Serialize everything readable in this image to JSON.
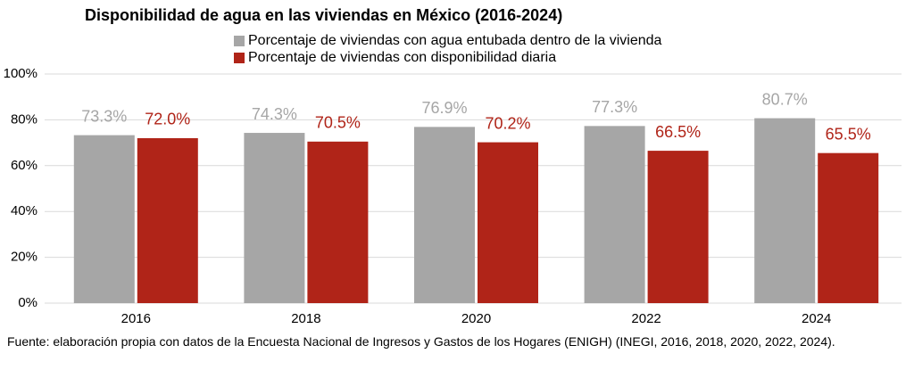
{
  "chart_data": {
    "type": "bar",
    "title": "Disponibilidad de agua en las viviendas en México (2016-2024)",
    "categories": [
      "2016",
      "2018",
      "2020",
      "2022",
      "2024"
    ],
    "series": [
      {
        "name": "Porcentaje de viviendas con agua entubada dentro de la vivienda",
        "color": "#a6a6a6",
        "values": [
          73.3,
          74.3,
          76.9,
          77.3,
          80.7
        ],
        "value_labels": [
          "73.3%",
          "74.3%",
          "76.9%",
          "77.3%",
          "80.7%"
        ]
      },
      {
        "name": "Porcentaje de viviendas con disponibilidad diaria",
        "color": "#b02418",
        "values": [
          72.0,
          70.5,
          70.2,
          66.5,
          65.5
        ],
        "value_labels": [
          "72.0%",
          "70.5%",
          "70.2%",
          "66.5%",
          "65.5%"
        ]
      }
    ],
    "ylim": [
      0,
      100
    ],
    "yticks": [
      {
        "value": 0,
        "label": "0%"
      },
      {
        "value": 20,
        "label": "20%"
      },
      {
        "value": 40,
        "label": "40%"
      },
      {
        "value": 60,
        "label": "60%"
      },
      {
        "value": 80,
        "label": "80%"
      },
      {
        "value": 100,
        "label": "100%"
      }
    ],
    "grid": true,
    "source": "Fuente: elaboración propia con datos de la Encuesta Nacional de Ingresos y Gastos de los Hogares (ENIGH) (INEGI, 2016, 2018, 2020, 2022, 2024)."
  }
}
